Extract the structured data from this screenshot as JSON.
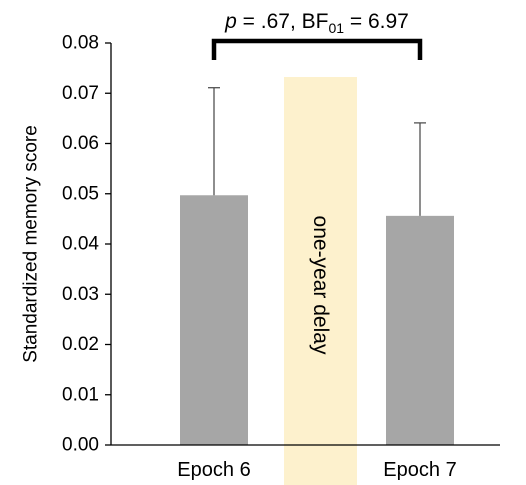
{
  "chart_data": {
    "type": "bar",
    "categories": [
      "Epoch 6",
      "Epoch 7"
    ],
    "values": [
      0.0497,
      0.0456
    ],
    "error_upper": [
      0.0711,
      0.0641
    ],
    "ylabel": "Standardized memory score",
    "xlabel": "",
    "ylim": [
      0,
      0.08
    ],
    "yticks": [
      "0.00",
      "0.01",
      "0.02",
      "0.03",
      "0.04",
      "0.05",
      "0.06",
      "0.07",
      "0.08"
    ],
    "grid": false,
    "bar_color": "#a6a6a6",
    "delay_band": {
      "label": "one-year delay",
      "color": "#fdf1cd"
    },
    "annotation": {
      "p_symbol": "p",
      "p_text": " = .67, BF",
      "bf_subscript": "01",
      "bf_text": " = 6.97"
    }
  }
}
